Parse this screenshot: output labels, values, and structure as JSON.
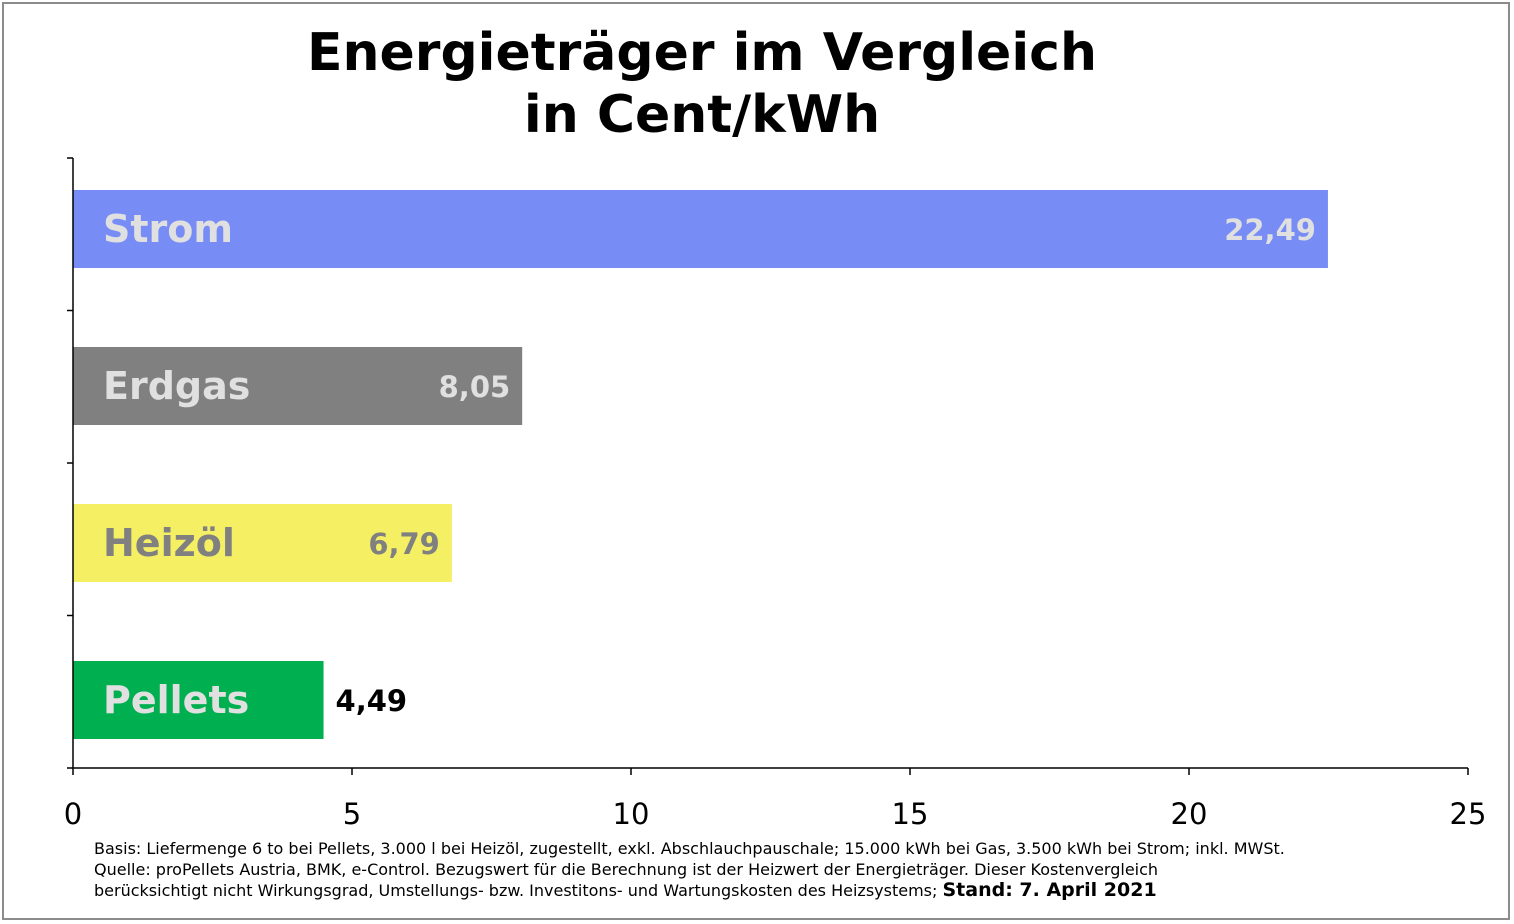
{
  "chart_data": {
    "type": "bar",
    "orientation": "horizontal",
    "title": [
      "Energieträger im Vergleich",
      "in Cent/kWh"
    ],
    "categories": [
      "Strom",
      "Erdgas",
      "Heizöl",
      "Pellets"
    ],
    "values": [
      22.49,
      8.05,
      6.79,
      4.49
    ],
    "value_labels": [
      "22,49",
      "8,05",
      "6,79",
      "4,49"
    ],
    "bar_colors": [
      "#778cf5",
      "#808080",
      "#f5ef64",
      "#00b050"
    ],
    "category_label_colors": [
      "#e0e0e0",
      "#e0e0e0",
      "#808080",
      "#e0e0e0"
    ],
    "value_label_colors": [
      "#e0e0e0",
      "#e0e0e0",
      "#808080",
      "#000000"
    ],
    "value_label_position": [
      "inside-end",
      "inside-end",
      "inside-end",
      "outside-end"
    ],
    "xlim": [
      0,
      25
    ],
    "xticks": [
      0,
      5,
      10,
      15,
      20,
      25
    ],
    "xtick_labels": [
      "0",
      "5",
      "10",
      "15",
      "20",
      "25"
    ],
    "xlabel": "",
    "ylabel": "",
    "grid": false,
    "legend": "none"
  },
  "footnote": {
    "line1": "Basis: Liefermenge 6 to bei Pellets, 3.000 l bei Heizöl, zugestellt, exkl. Abschlauchpauschale; 15.000 kWh bei Gas, 3.500 kWh bei Strom; inkl. MWSt.",
    "line2": "Quelle: proPellets Austria, BMK, e-Control. Bezugswert für die Berechnung ist der Heizwert der Energieträger. Dieser Kostenvergleich",
    "line3": "berücksichtigt nicht Wirkungsgrad, Umstellungs- bzw. Investitons- und Wartungskosten des Heizsystems;",
    "stand": "Stand: 7. April 2021"
  }
}
